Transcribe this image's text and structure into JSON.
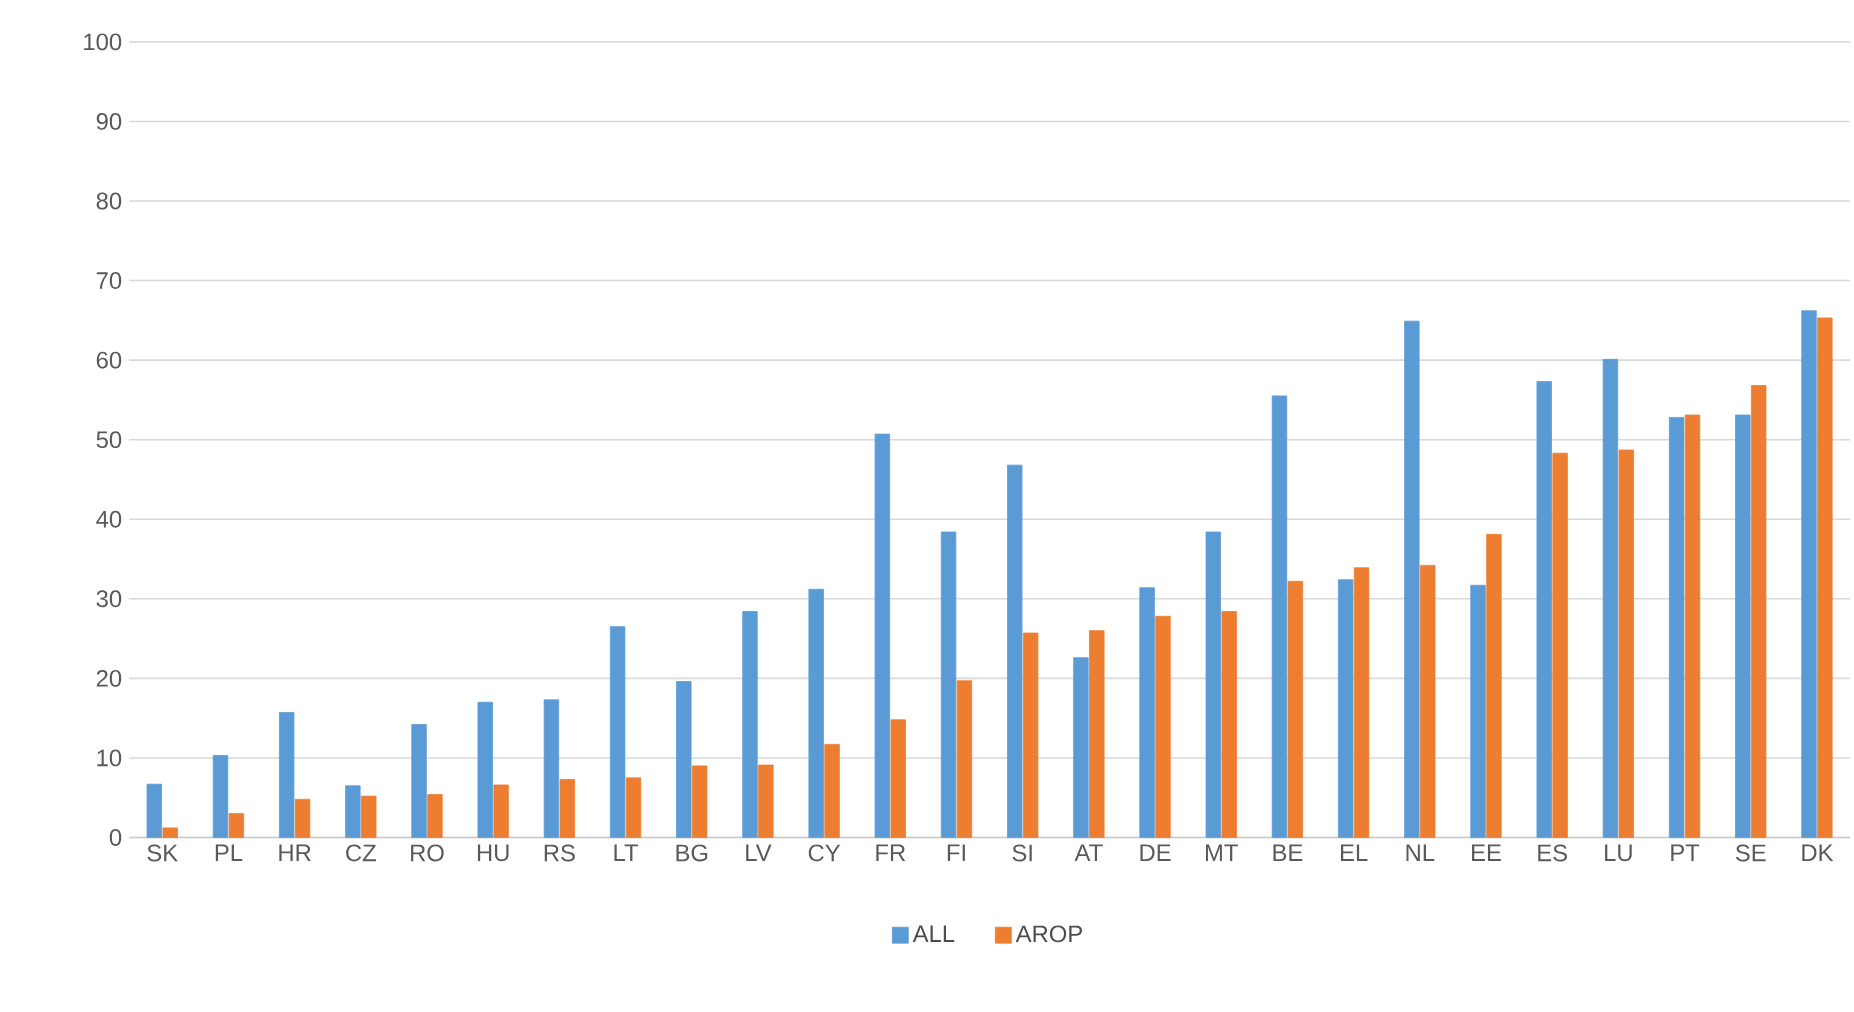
{
  "chart_data": {
    "type": "bar",
    "categories": [
      "SK",
      "PL",
      "HR",
      "CZ",
      "RO",
      "HU",
      "RS",
      "LT",
      "BG",
      "LV",
      "CY",
      "FR",
      "FI",
      "SI",
      "AT",
      "DE",
      "MT",
      "BE",
      "EL",
      "NL",
      "EE",
      "ES",
      "LU",
      "PT",
      "SE",
      "DK"
    ],
    "series": [
      {
        "name": "ALL",
        "color": "#5b9bd5",
        "values": [
          6.7,
          10.3,
          15.7,
          6.5,
          14.2,
          17,
          17.3,
          26.5,
          19.6,
          28.4,
          31.2,
          50.7,
          38.4,
          46.8,
          22.6,
          31.4,
          38.4,
          55.5,
          32.4,
          64.9,
          31.7,
          57.3,
          60.1,
          52.8,
          53.1,
          66.2
        ]
      },
      {
        "name": "AROP",
        "color": "#ed7d31",
        "values": [
          1.2,
          3,
          4.8,
          5.2,
          5.4,
          6.6,
          7.3,
          7.5,
          9,
          9.1,
          11.7,
          14.8,
          19.7,
          25.7,
          26,
          27.8,
          28.4,
          32.2,
          33.9,
          34.2,
          38.1,
          48.3,
          48.7,
          53.1,
          56.8,
          65.3
        ]
      }
    ],
    "ylim": [
      0,
      100
    ],
    "yticks": [
      0,
      10,
      20,
      30,
      40,
      50,
      60,
      70,
      80,
      90,
      100
    ],
    "grid": "y",
    "legend": "bottom"
  }
}
